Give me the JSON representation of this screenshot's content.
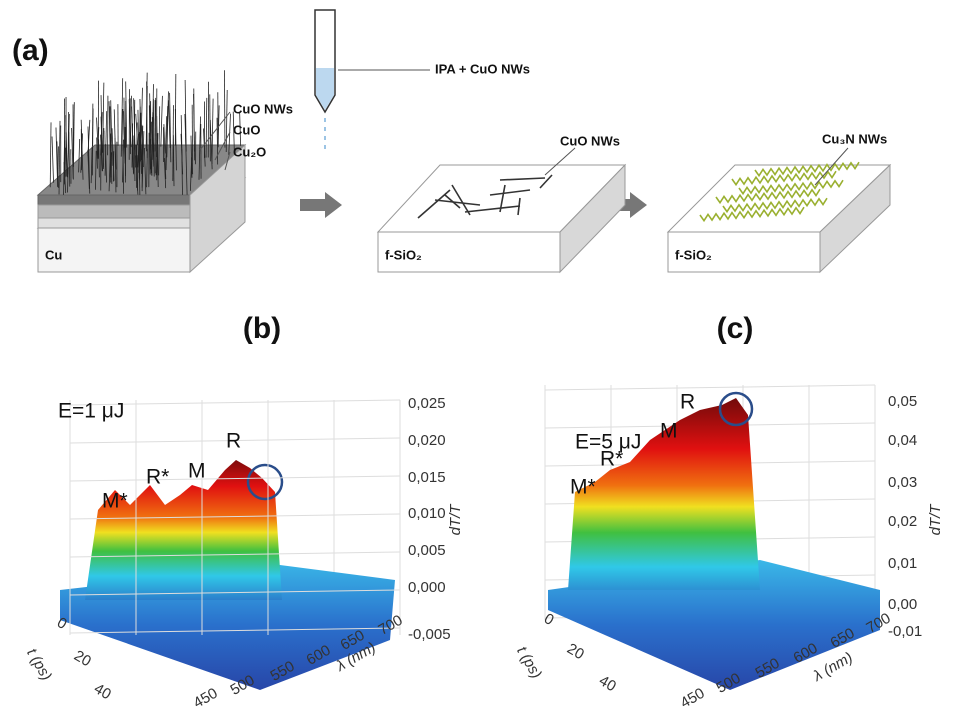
{
  "panel_a": {
    "label": "(a)",
    "layers": [
      "CuO NWs",
      "CuO",
      "Cu₂O"
    ],
    "substrate_1": "Cu",
    "solution": "IPA + CuO NWs",
    "wires_2": "CuO NWs",
    "substrate_2": "f-SiO₂",
    "wires_3": "Cu₃N NWs",
    "substrate_3": "f-SiO₂"
  },
  "panel_b": {
    "label": "(b)",
    "energy": "E=1 μJ",
    "peaks": [
      "M*",
      "R*",
      "M",
      "R"
    ],
    "z_ticks": [
      "0,025",
      "0,020",
      "0,015",
      "0,010",
      "0,005",
      "0,000",
      "-0,005"
    ],
    "z_label": "dT/T",
    "t_ticks": [
      "0",
      "20",
      "40"
    ],
    "t_label": "t (ps)",
    "wl_ticks": [
      "450",
      "500",
      "550",
      "600",
      "650",
      "700"
    ],
    "wl_label": "λ (nm)"
  },
  "panel_c": {
    "label": "(c)",
    "energy": "E=5 μJ",
    "peaks": [
      "M*",
      "R*",
      "M",
      "R"
    ],
    "z_ticks": [
      "0,05",
      "0,04",
      "0,03",
      "0,02",
      "0,01",
      "0,00",
      "-0,01"
    ],
    "z_label": "dT/T",
    "t_ticks": [
      "0",
      "20",
      "40"
    ],
    "t_label": "t (ps)",
    "wl_ticks": [
      "450",
      "500",
      "550",
      "600",
      "650",
      "700"
    ],
    "wl_label": "λ (nm)"
  }
}
